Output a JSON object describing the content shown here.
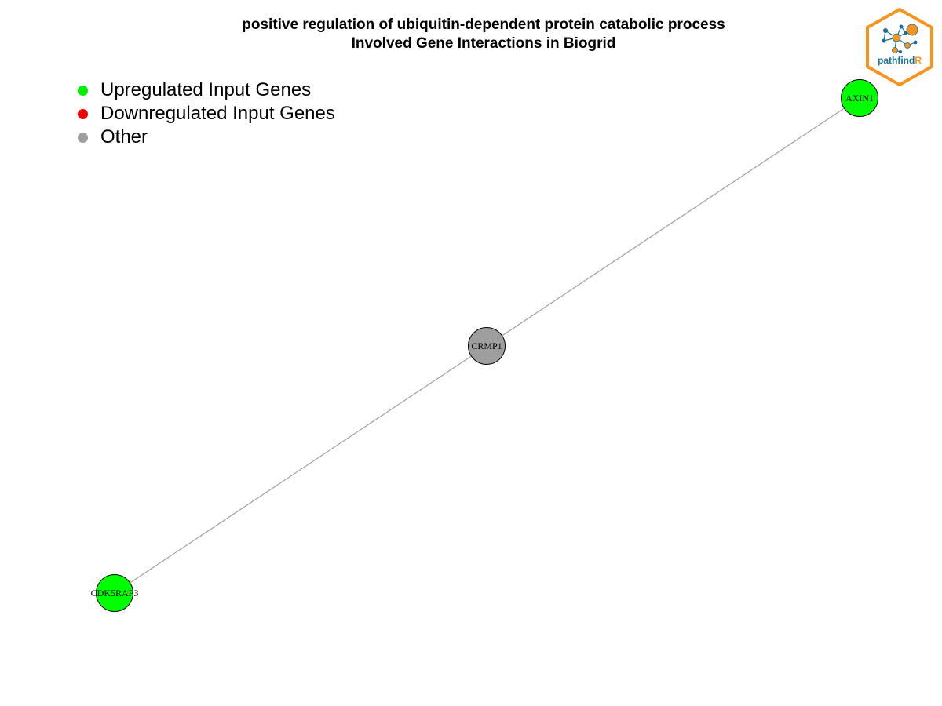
{
  "title": {
    "line1": "positive regulation of ubiquitin-dependent protein catabolic process",
    "line2": "Involved Gene Interactions in Biogrid"
  },
  "legend": {
    "items": [
      {
        "label": "Upregulated Input Genes",
        "color": "#00ee00"
      },
      {
        "label": "Downregulated Input Genes",
        "color": "#ee0000"
      },
      {
        "label": "Other",
        "color": "#9e9e9e"
      }
    ]
  },
  "network": {
    "nodes": [
      {
        "id": "AXIN1",
        "label": "AXIN1",
        "status": "upregulated",
        "color": "#00ff00"
      },
      {
        "id": "CRMP1",
        "label": "CRMP1",
        "status": "other",
        "color": "#9e9e9e"
      },
      {
        "id": "CDK5RAP3",
        "label": "CDK5RAP3",
        "status": "upregulated",
        "color": "#00ff00"
      }
    ],
    "edges": [
      {
        "source": "AXIN1",
        "target": "CRMP1"
      },
      {
        "source": "CRMP1",
        "target": "CDK5RAP3"
      }
    ],
    "edge_color": "#a0a0a0"
  },
  "logo": {
    "text": "pathfindR",
    "border_color": "#f7941d",
    "brand_blue": "#1a6e96",
    "brand_orange": "#f7941d",
    "icon_name": "network-logo-icon"
  }
}
